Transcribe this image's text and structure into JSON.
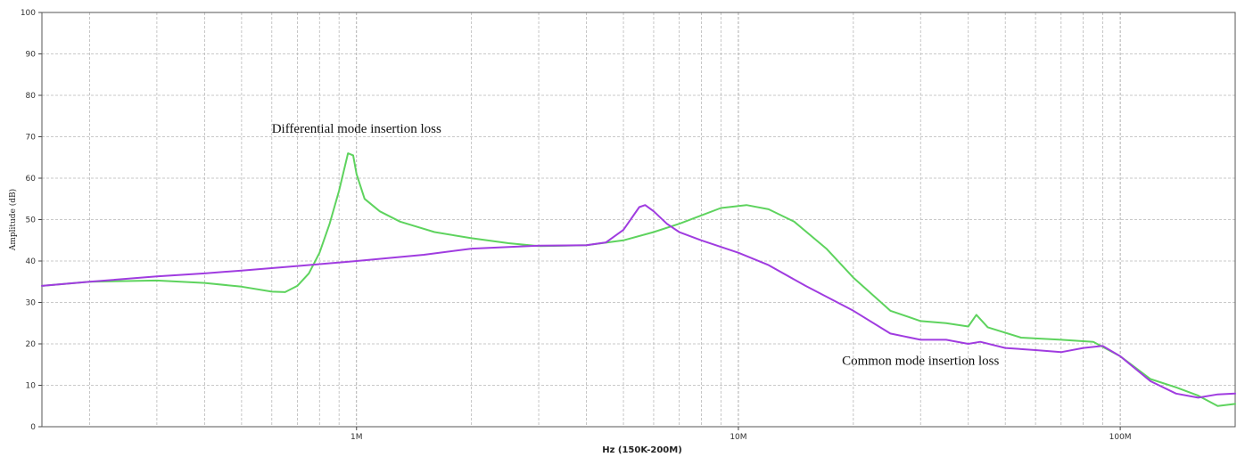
{
  "chart_data": {
    "type": "line",
    "xlabel": "Hz  (150K-200M)",
    "ylabel": "Amplitude (dB)",
    "x_scale": "log",
    "xlim": [
      150000,
      200000000
    ],
    "ylim": [
      0,
      100
    ],
    "y_ticks": [
      0,
      10,
      20,
      30,
      40,
      50,
      60,
      70,
      80,
      90,
      100
    ],
    "x_ticks": [
      {
        "value": 1000000,
        "label": "1M"
      },
      {
        "value": 10000000,
        "label": "10M"
      },
      {
        "value": 100000000,
        "label": "100M"
      }
    ],
    "grid": true,
    "annotations": [
      {
        "text": "Differential mode insertion loss",
        "x": 1000000,
        "y": 71
      },
      {
        "text": "Common mode insertion loss",
        "x": 30000000,
        "y": 15
      }
    ],
    "series": [
      {
        "color": "#5ed35e",
        "points": [
          [
            150000,
            34.0
          ],
          [
            200000,
            35.0
          ],
          [
            300000,
            35.3
          ],
          [
            400000,
            34.7
          ],
          [
            500000,
            33.8
          ],
          [
            600000,
            32.6
          ],
          [
            650000,
            32.5
          ],
          [
            700000,
            34.0
          ],
          [
            750000,
            37.0
          ],
          [
            800000,
            42.0
          ],
          [
            850000,
            49.0
          ],
          [
            900000,
            57.0
          ],
          [
            950000,
            66.0
          ],
          [
            980000,
            65.5
          ],
          [
            1000000,
            61.0
          ],
          [
            1050000,
            55.0
          ],
          [
            1150000,
            52.0
          ],
          [
            1300000,
            49.5
          ],
          [
            1600000,
            47.0
          ],
          [
            2000000,
            45.5
          ],
          [
            2500000,
            44.3
          ],
          [
            3000000,
            43.6
          ],
          [
            4000000,
            43.8
          ],
          [
            5000000,
            45.0
          ],
          [
            6000000,
            47.0
          ],
          [
            7000000,
            49.0
          ],
          [
            8000000,
            51.0
          ],
          [
            9000000,
            52.8
          ],
          [
            10500000,
            53.5
          ],
          [
            12000000,
            52.5
          ],
          [
            14000000,
            49.5
          ],
          [
            17000000,
            43.0
          ],
          [
            20000000,
            36.0
          ],
          [
            25000000,
            28.0
          ],
          [
            30000000,
            25.5
          ],
          [
            35000000,
            25.0
          ],
          [
            40000000,
            24.2
          ],
          [
            42000000,
            27.0
          ],
          [
            45000000,
            24.0
          ],
          [
            55000000,
            21.5
          ],
          [
            70000000,
            21.0
          ],
          [
            85000000,
            20.5
          ],
          [
            100000000,
            17.0
          ],
          [
            120000000,
            11.5
          ],
          [
            140000000,
            9.5
          ],
          [
            160000000,
            7.5
          ],
          [
            180000000,
            5.0
          ],
          [
            200000000,
            5.5
          ]
        ]
      },
      {
        "color": "#a03ce0",
        "points": [
          [
            150000,
            34.0
          ],
          [
            200000,
            35.0
          ],
          [
            300000,
            36.3
          ],
          [
            400000,
            37.0
          ],
          [
            500000,
            37.7
          ],
          [
            700000,
            38.8
          ],
          [
            1000000,
            40.0
          ],
          [
            1500000,
            41.5
          ],
          [
            2000000,
            43.0
          ],
          [
            3000000,
            43.7
          ],
          [
            4000000,
            43.8
          ],
          [
            4500000,
            44.5
          ],
          [
            5000000,
            47.5
          ],
          [
            5500000,
            53.0
          ],
          [
            5700000,
            53.5
          ],
          [
            6000000,
            52.0
          ],
          [
            6500000,
            49.0
          ],
          [
            7000000,
            47.0
          ],
          [
            8000000,
            45.0
          ],
          [
            10000000,
            42.0
          ],
          [
            12000000,
            39.0
          ],
          [
            15000000,
            34.0
          ],
          [
            20000000,
            28.0
          ],
          [
            25000000,
            22.5
          ],
          [
            30000000,
            21.0
          ],
          [
            35000000,
            21.0
          ],
          [
            40000000,
            20.0
          ],
          [
            43000000,
            20.5
          ],
          [
            50000000,
            19.0
          ],
          [
            60000000,
            18.5
          ],
          [
            70000000,
            18.0
          ],
          [
            80000000,
            19.0
          ],
          [
            90000000,
            19.5
          ],
          [
            100000000,
            17.0
          ],
          [
            120000000,
            11.0
          ],
          [
            140000000,
            8.0
          ],
          [
            160000000,
            7.0
          ],
          [
            180000000,
            7.8
          ],
          [
            200000000,
            8.0
          ]
        ]
      }
    ]
  }
}
